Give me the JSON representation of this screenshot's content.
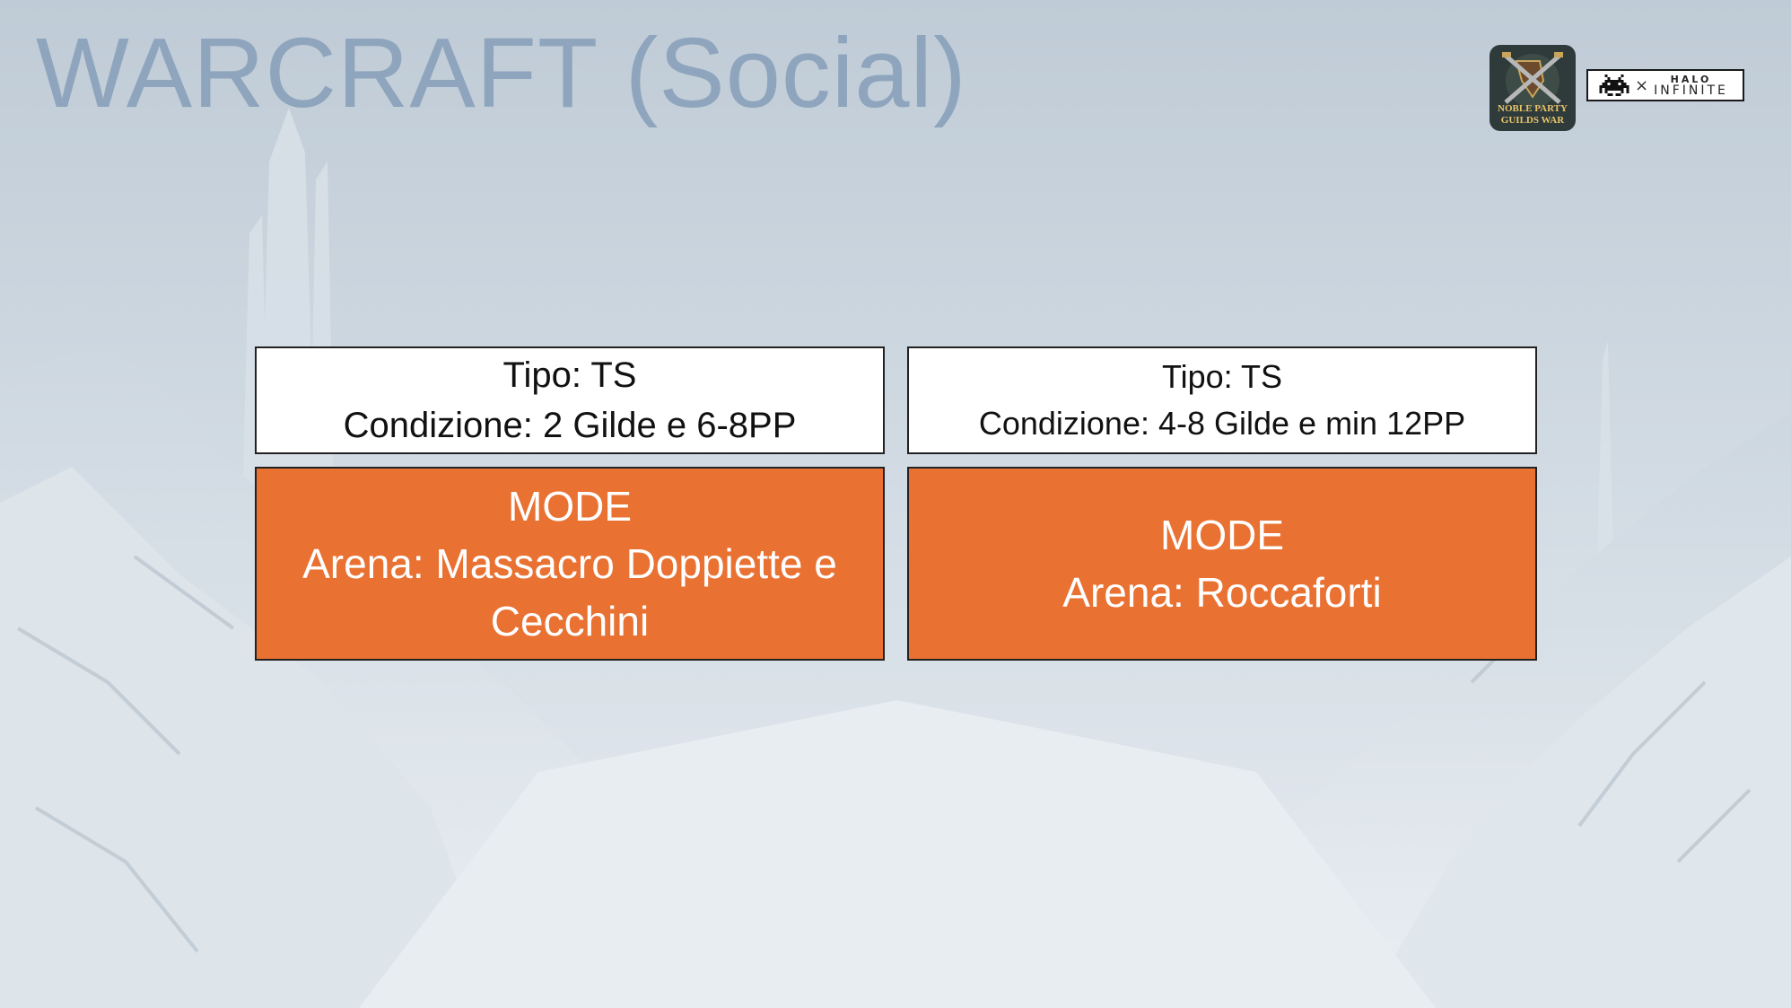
{
  "slide": {
    "title": "WARCRAFT (Social)"
  },
  "logos": {
    "noble_party": {
      "line1": "NOBLE PARTY",
      "line2": "GUILDS WAR"
    },
    "halo": {
      "separator": "×",
      "top": "HALO",
      "bottom": "INFINITE"
    }
  },
  "cards": [
    {
      "info": {
        "type": "Tipo: TS",
        "condition": "Condizione: 2 Gilde e 6-8PP"
      },
      "mode": {
        "heading": "MODE",
        "arena_line1": "Arena: Massacro Doppiette e",
        "arena_line2": "Cecchini"
      }
    },
    {
      "info": {
        "type": "Tipo: TS",
        "condition": "Condizione: 4-8 Gilde e min 12PP"
      },
      "mode": {
        "heading": "MODE",
        "arena_line1": "Arena: Roccaforti"
      }
    }
  ]
}
